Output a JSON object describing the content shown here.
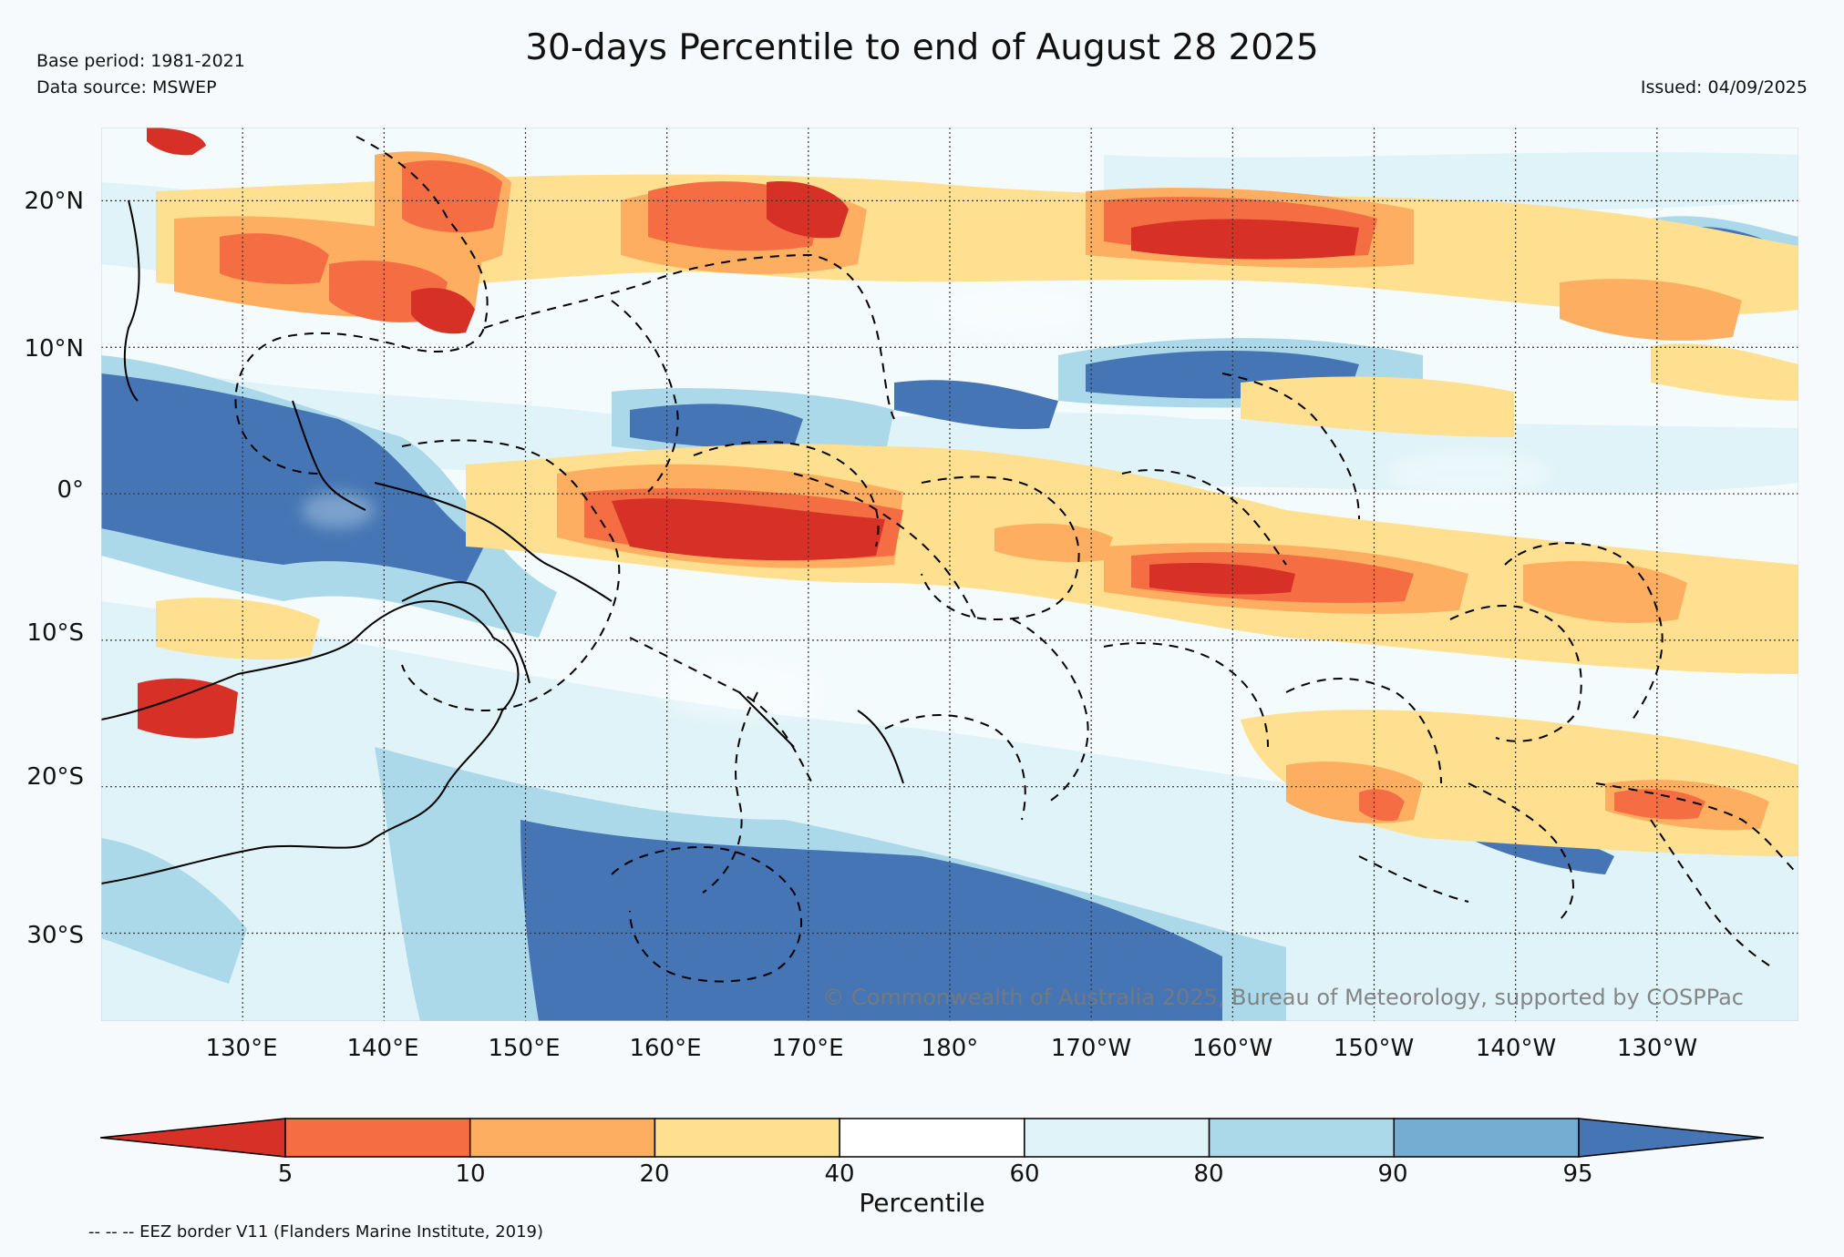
{
  "title": "30-days Percentile to end of August 28 2025",
  "base_period": "Base period: 1981-2021",
  "data_source": "Data source: MSWEP",
  "issued": "Issued: 04/09/2025",
  "copyright": "© Commonwealth of Australia 2025, Bureau of Meteorology, supported by COSPPac",
  "eez_note": "-- -- -- EEZ border V11 (Flanders Marine Institute, 2019)",
  "map": {
    "lat_labels": [
      "20°N",
      "10°N",
      "0°",
      "10°S",
      "20°S",
      "30°S"
    ],
    "lat_values": [
      20,
      10,
      0,
      -10,
      -20,
      -30
    ],
    "lon_labels": [
      "130°E",
      "140°E",
      "150°E",
      "160°E",
      "170°E",
      "180°",
      "170°W",
      "160°W",
      "150°W",
      "140°W",
      "130°W"
    ],
    "lon_values": [
      130,
      140,
      150,
      160,
      170,
      180,
      190,
      200,
      210,
      220,
      230
    ],
    "lon_range": [
      120,
      240
    ],
    "lat_range": [
      -36,
      25
    ]
  },
  "colorbar": {
    "label": "Percentile",
    "ticks": [
      "5",
      "10",
      "20",
      "40",
      "60",
      "80",
      "90",
      "95"
    ],
    "colors": [
      "#d73027",
      "#f46d43",
      "#fdae61",
      "#fee090",
      "#ffffff",
      "#e0f3f8",
      "#abd9e9",
      "#74add1",
      "#4575b4"
    ]
  }
}
